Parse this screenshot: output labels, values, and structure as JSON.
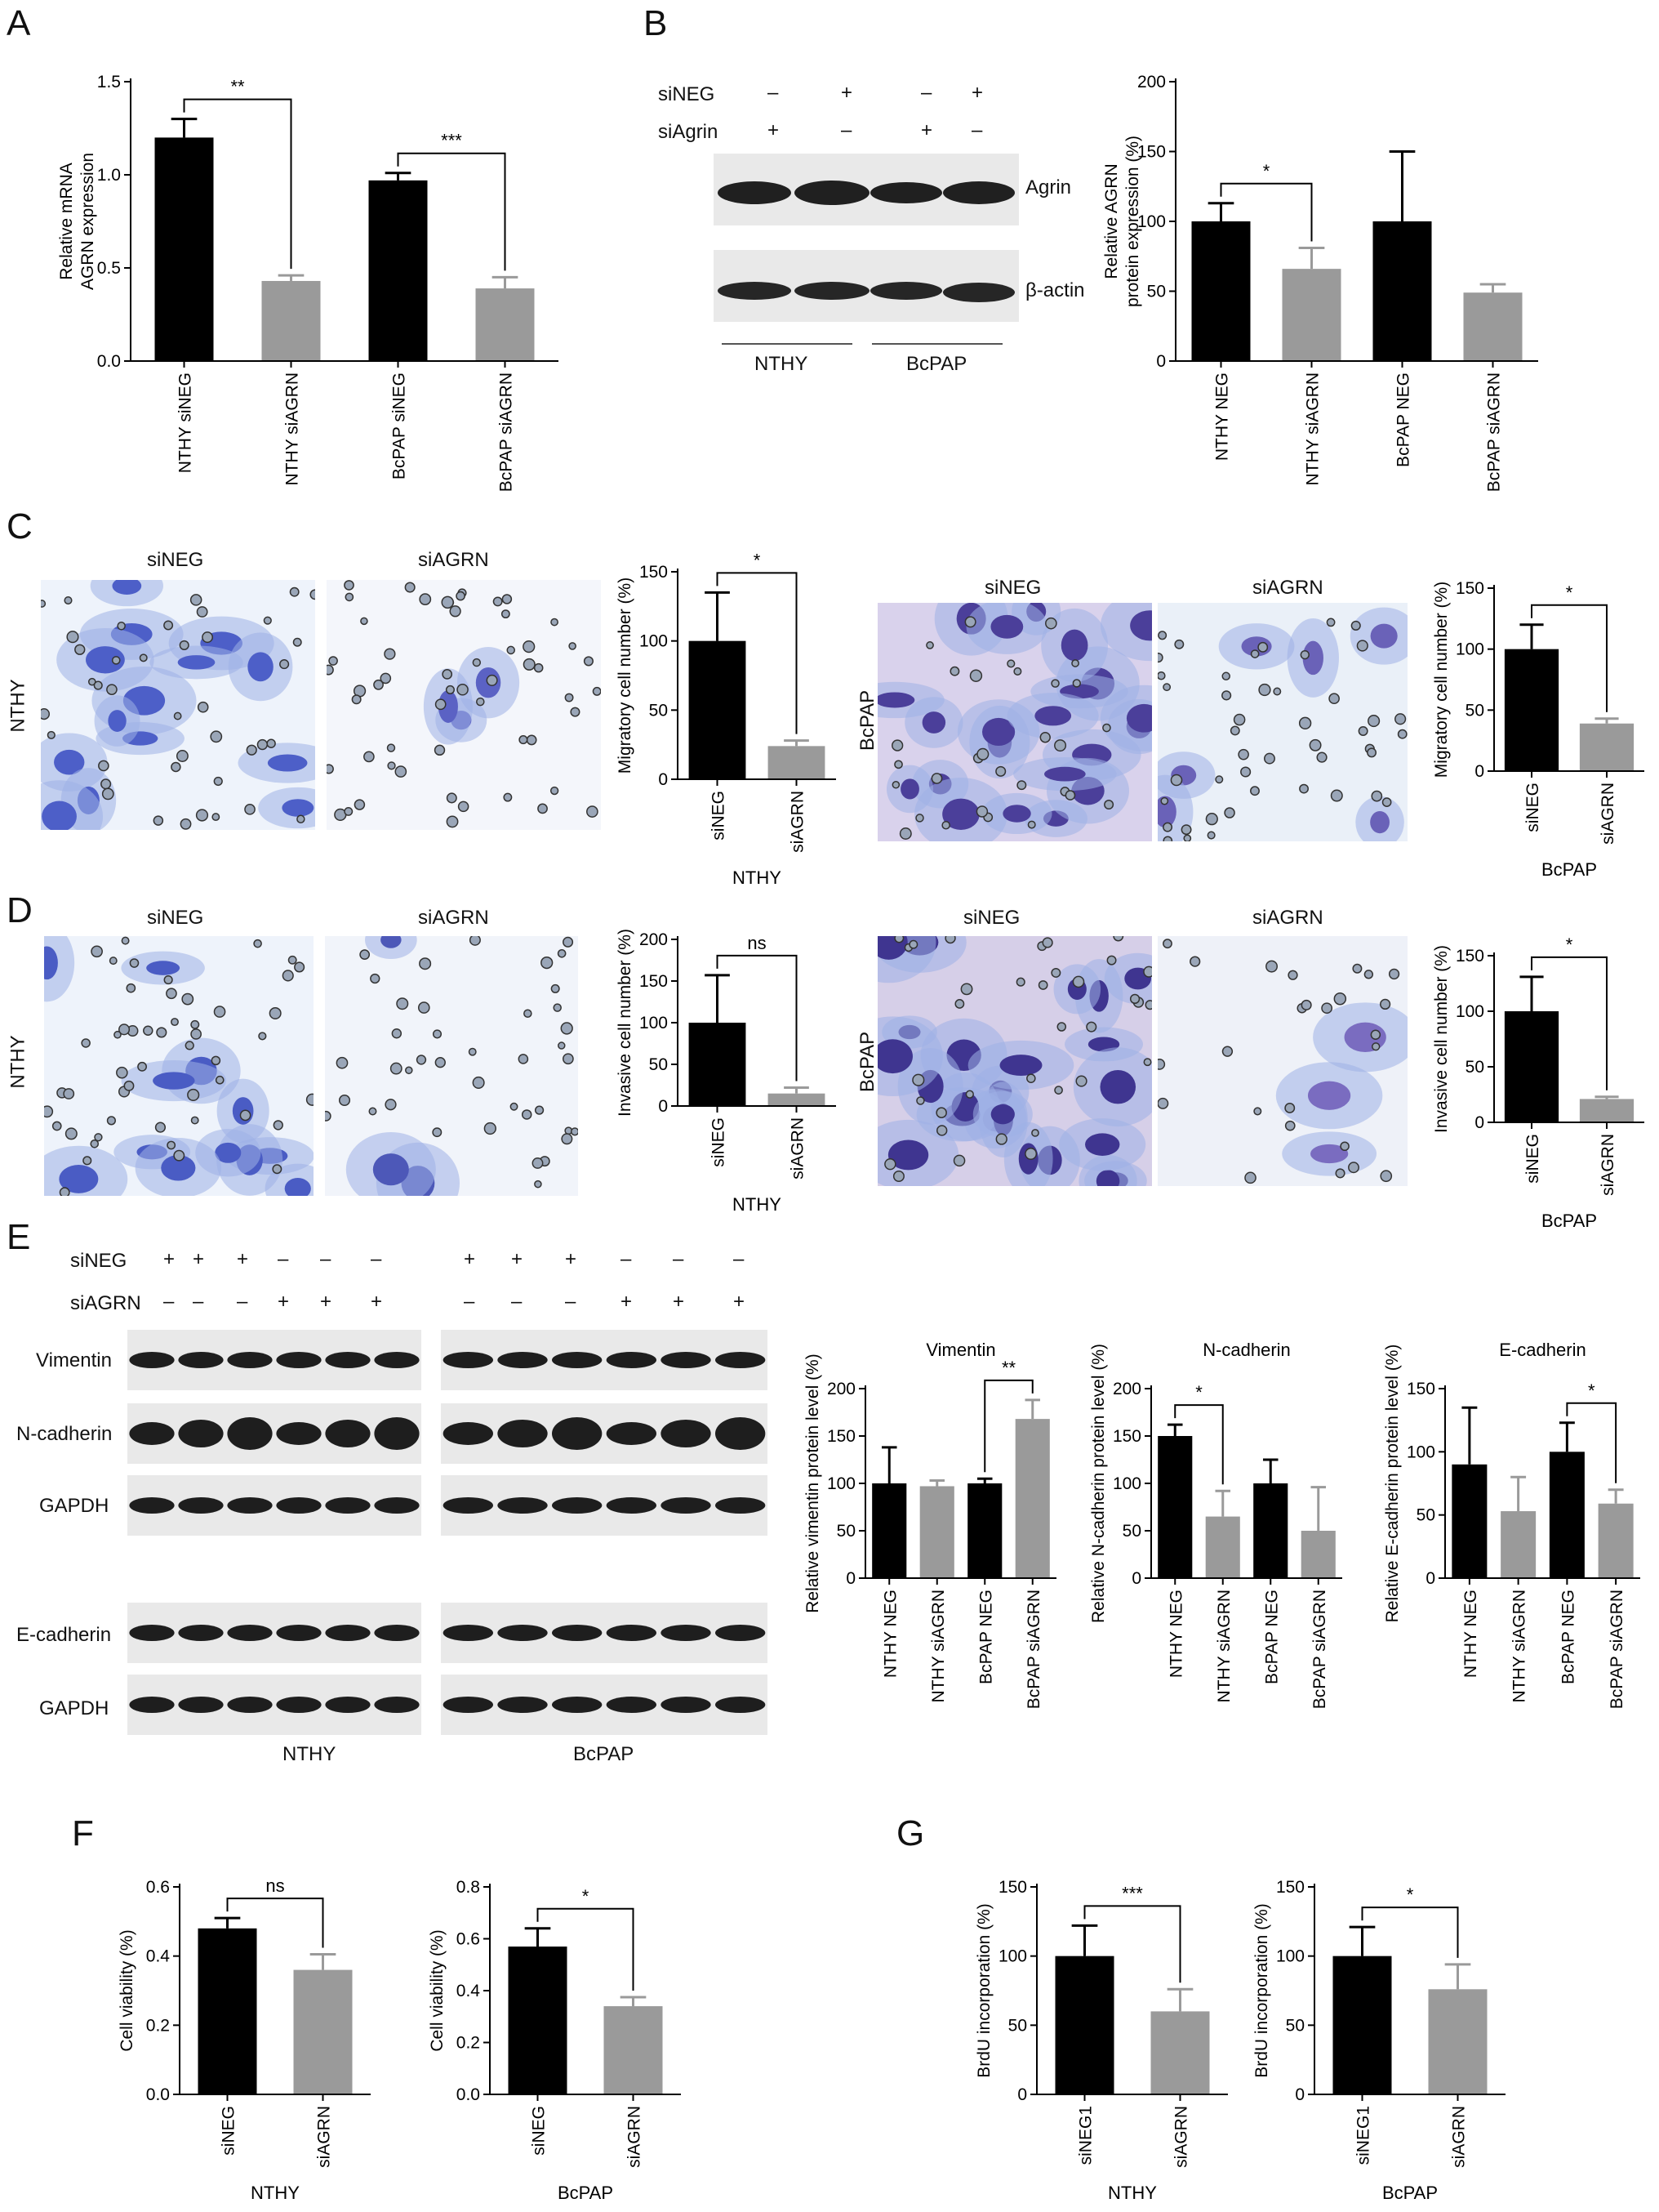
{
  "panels": {
    "A": {
      "letter": "A"
    },
    "B": {
      "letter": "B"
    },
    "C": {
      "letter": "C"
    },
    "D": {
      "letter": "D"
    },
    "E": {
      "letter": "E"
    },
    "F": {
      "letter": "F"
    },
    "G": {
      "letter": "G"
    }
  },
  "blotB": {
    "row_siNEG": "siNEG",
    "row_siAgrin": "siAgrin",
    "siNEG_signs": [
      "–",
      "+",
      "–",
      "+"
    ],
    "siAgrin_signs": [
      "+",
      "–",
      "+",
      "–"
    ],
    "band1": "Agrin",
    "band2": "β-actin",
    "group1": "NTHY",
    "group2": "BcPAP"
  },
  "microC": {
    "siNEG": "siNEG",
    "siAGRN": "siAGRN",
    "side_left": "NTHY",
    "side_right": "BcPAP"
  },
  "microD": {
    "siNEG": "siNEG",
    "siAGRN": "siAGRN",
    "side_left": "NTHY",
    "side_right": "BcPAP"
  },
  "blotE": {
    "row_siNEG": "siNEG",
    "row_siAGRN": "siAGRN",
    "siNEG_signs_left": [
      "+",
      "+",
      "+",
      "–",
      "–",
      "–"
    ],
    "siAGRN_signs_left": [
      "–",
      "–",
      "–",
      "+",
      "+",
      "+"
    ],
    "siNEG_signs_right": [
      "+",
      "+",
      "+",
      "–",
      "–",
      "–"
    ],
    "siAGRN_signs_right": [
      "–",
      "–",
      "–",
      "+",
      "+",
      "+"
    ],
    "bands": [
      "Vimentin",
      "N-cadherin",
      "GAPDH",
      "E-cadherin",
      "GAPDH"
    ],
    "group1": "NTHY",
    "group2": "BcPAP"
  },
  "colors": {
    "neg": "#000000",
    "si": "#9a9a9a"
  },
  "chart_data": [
    {
      "id": "A",
      "type": "bar",
      "categories": [
        "NTHY siNEG",
        "NTHY siAGRN",
        "BcPAP siNEG",
        "BcPAP siAGRN"
      ],
      "values": [
        1.2,
        0.43,
        0.97,
        0.39
      ],
      "errors": [
        0.1,
        0.03,
        0.04,
        0.06
      ],
      "ylabel": [
        "Relative mRNA",
        "AGRN expression"
      ],
      "ylim": [
        0,
        1.5
      ],
      "ticks": [
        "0.0",
        "0.5",
        "1.0",
        "1.5"
      ],
      "tickvals": [
        0,
        0.5,
        1,
        1.5
      ],
      "sig": [
        {
          "from": 0,
          "to": 1,
          "label": "**"
        },
        {
          "from": 2,
          "to": 3,
          "label": "***"
        }
      ]
    },
    {
      "id": "B",
      "type": "bar",
      "categories": [
        "NTHY NEG",
        "NTHY siAGRN",
        "BcPAP NEG",
        "BcPAP siAGRN"
      ],
      "values": [
        100,
        66,
        100,
        49
      ],
      "errors": [
        13,
        15,
        50,
        6
      ],
      "ylabel": [
        "Relative AGRN",
        "protein expression (%)"
      ],
      "ylim": [
        0,
        200
      ],
      "ticks": [
        "0",
        "50",
        "100",
        "150",
        "200"
      ],
      "tickvals": [
        0,
        50,
        100,
        150,
        200
      ],
      "sig": [
        {
          "from": 0,
          "to": 1,
          "label": "*"
        }
      ]
    },
    {
      "id": "C1",
      "type": "bar",
      "categories": [
        "siNEG",
        "siAGRN"
      ],
      "values": [
        100,
        24
      ],
      "errors": [
        35,
        4
      ],
      "ylabel": [
        "Migratory cell number (%)"
      ],
      "ylim": [
        0,
        150
      ],
      "ticks": [
        "0",
        "50",
        "100",
        "150"
      ],
      "tickvals": [
        0,
        50,
        100,
        150
      ],
      "xlabel": "NTHY",
      "sig": [
        {
          "from": 0,
          "to": 1,
          "label": "*"
        }
      ]
    },
    {
      "id": "C2",
      "type": "bar",
      "categories": [
        "siNEG",
        "siAGRN"
      ],
      "values": [
        100,
        39
      ],
      "errors": [
        20,
        4
      ],
      "ylabel": [
        "Migratory cell number (%)"
      ],
      "ylim": [
        0,
        150
      ],
      "ticks": [
        "0",
        "50",
        "100",
        "150"
      ],
      "tickvals": [
        0,
        50,
        100,
        150
      ],
      "xlabel": "BcPAP",
      "sig": [
        {
          "from": 0,
          "to": 1,
          "label": "*"
        }
      ]
    },
    {
      "id": "D1",
      "type": "bar",
      "categories": [
        "siNEG",
        "siAGRN"
      ],
      "values": [
        100,
        15
      ],
      "errors": [
        57,
        7
      ],
      "ylabel": [
        "Invasive cell number (%)"
      ],
      "ylim": [
        0,
        200
      ],
      "ticks": [
        "0",
        "50",
        "100",
        "150",
        "200"
      ],
      "tickvals": [
        0,
        50,
        100,
        150,
        200
      ],
      "xlabel": "NTHY",
      "sig": [
        {
          "from": 0,
          "to": 1,
          "label": "ns"
        }
      ]
    },
    {
      "id": "D2",
      "type": "bar",
      "categories": [
        "siNEG",
        "siAGRN"
      ],
      "values": [
        100,
        21
      ],
      "errors": [
        31,
        2
      ],
      "ylabel": [
        "Invasive cell number (%)"
      ],
      "ylim": [
        0,
        150
      ],
      "ticks": [
        "0",
        "50",
        "100",
        "150"
      ],
      "tickvals": [
        0,
        50,
        100,
        150
      ],
      "xlabel": "BcPAP",
      "sig": [
        {
          "from": 0,
          "to": 1,
          "label": "*"
        }
      ]
    },
    {
      "id": "E1",
      "type": "bar",
      "title": "Vimentin",
      "categories": [
        "NTHY NEG",
        "NTHY siAGRN",
        "BcPAP NEG",
        "BcPAP siAGRN"
      ],
      "values": [
        100,
        97,
        100,
        168
      ],
      "errors": [
        38,
        6,
        5,
        20
      ],
      "ylabel": [
        "Relative vimentin protein level (%)"
      ],
      "ylim": [
        0,
        200
      ],
      "ticks": [
        "0",
        "50",
        "100",
        "150",
        "200"
      ],
      "tickvals": [
        0,
        50,
        100,
        150,
        200
      ],
      "sig": [
        {
          "from": 2,
          "to": 3,
          "label": "**"
        }
      ]
    },
    {
      "id": "E2",
      "type": "bar",
      "title": "N-cadherin",
      "categories": [
        "NTHY NEG",
        "NTHY siAGRN",
        "BcPAP NEG",
        "BcPAP siAGRN"
      ],
      "values": [
        150,
        65,
        100,
        50
      ],
      "errors": [
        12,
        27,
        25,
        46
      ],
      "ylabel": [
        "Relative N-cadherin protein level (%)"
      ],
      "ylim": [
        0,
        200
      ],
      "ticks": [
        "0",
        "50",
        "100",
        "150",
        "200"
      ],
      "tickvals": [
        0,
        50,
        100,
        150,
        200
      ],
      "sig": [
        {
          "from": 0,
          "to": 1,
          "label": "*"
        }
      ]
    },
    {
      "id": "E3",
      "type": "bar",
      "title": "E-cadherin",
      "categories": [
        "NTHY NEG",
        "NTHY siAGRN",
        "BcPAP NEG",
        "BcPAP siAGRN"
      ],
      "values": [
        90,
        53,
        100,
        59
      ],
      "errors": [
        45,
        27,
        23,
        11
      ],
      "ylabel": [
        "Relative E-cadherin protein level (%)"
      ],
      "ylim": [
        0,
        150
      ],
      "ticks": [
        "0",
        "50",
        "100",
        "150"
      ],
      "tickvals": [
        0,
        50,
        100,
        150
      ],
      "sig": [
        {
          "from": 2,
          "to": 3,
          "label": "*"
        }
      ]
    },
    {
      "id": "F1",
      "type": "bar",
      "categories": [
        "siNEG",
        "siAGRN"
      ],
      "values": [
        0.48,
        0.36
      ],
      "errors": [
        0.03,
        0.045
      ],
      "ylabel": [
        "Cell viability (%)"
      ],
      "ylim": [
        0,
        0.6
      ],
      "ticks": [
        "0.0",
        "0.2",
        "0.4",
        "0.6"
      ],
      "tickvals": [
        0,
        0.2,
        0.4,
        0.6
      ],
      "xlabel": "NTHY",
      "sig": [
        {
          "from": 0,
          "to": 1,
          "label": "ns"
        }
      ]
    },
    {
      "id": "F2",
      "type": "bar",
      "categories": [
        "siNEG",
        "siAGRN"
      ],
      "values": [
        0.57,
        0.34
      ],
      "errors": [
        0.07,
        0.035
      ],
      "ylabel": [
        "Cell viability (%)"
      ],
      "ylim": [
        0,
        0.8
      ],
      "ticks": [
        "0.0",
        "0.2",
        "0.4",
        "0.6",
        "0.8"
      ],
      "tickvals": [
        0,
        0.2,
        0.4,
        0.6,
        0.8
      ],
      "xlabel": "BcPAP",
      "sig": [
        {
          "from": 0,
          "to": 1,
          "label": "*"
        }
      ]
    },
    {
      "id": "G1",
      "type": "bar",
      "categories": [
        "siNEG1",
        "siAGRN"
      ],
      "values": [
        100,
        60
      ],
      "errors": [
        22,
        16
      ],
      "ylabel": [
        "BrdU incorporation (%)"
      ],
      "ylim": [
        0,
        150
      ],
      "ticks": [
        "0",
        "50",
        "100",
        "150"
      ],
      "tickvals": [
        0,
        50,
        100,
        150
      ],
      "xlabel": "NTHY",
      "sig": [
        {
          "from": 0,
          "to": 1,
          "label": "***"
        }
      ]
    },
    {
      "id": "G2",
      "type": "bar",
      "categories": [
        "siNEG1",
        "siAGRN"
      ],
      "values": [
        100,
        76
      ],
      "errors": [
        21,
        18
      ],
      "ylabel": [
        "BrdU incorporation (%)"
      ],
      "ylim": [
        0,
        150
      ],
      "ticks": [
        "0",
        "50",
        "100",
        "150"
      ],
      "tickvals": [
        0,
        50,
        100,
        150
      ],
      "xlabel": "BcPAP",
      "sig": [
        {
          "from": 0,
          "to": 1,
          "label": "*"
        }
      ]
    }
  ]
}
